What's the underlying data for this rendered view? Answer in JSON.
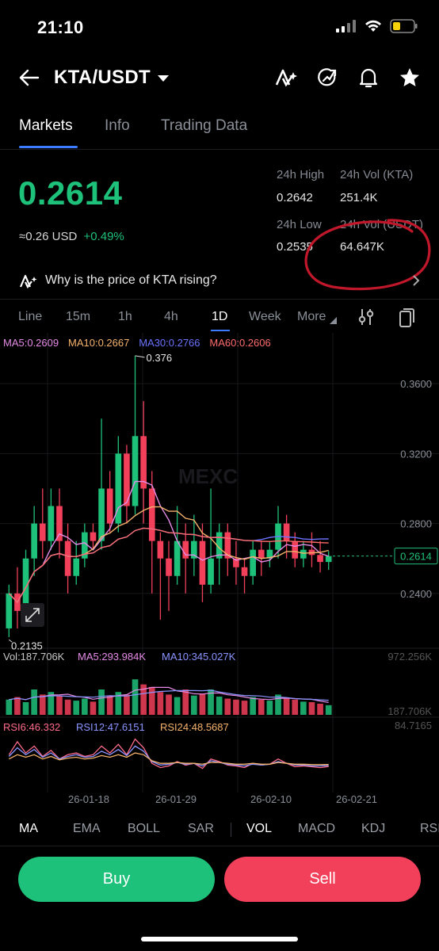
{
  "status": {
    "time": "21:10"
  },
  "header": {
    "pair": "KTA/USDT"
  },
  "tabs": [
    {
      "label": "Markets"
    },
    {
      "label": "Info"
    },
    {
      "label": "Trading Data"
    }
  ],
  "ticker": {
    "price": "0.2614",
    "fiat": "≈0.26",
    "fiat_unit": "USD",
    "change": "+0.49%",
    "high_label": "24h High",
    "high": "0.2642",
    "low_label": "24h Low",
    "low": "0.2535",
    "vol_kta_label": "24h Vol (KTA)",
    "vol_kta": "251.4K",
    "vol_usdt_label": "24h Vol (USDT)",
    "vol_usdt": "64.647K"
  },
  "why": {
    "text": "Why is the price of KTA rising?"
  },
  "intervals": [
    "Line",
    "15m",
    "1h",
    "4h",
    "1D",
    "Week",
    "More"
  ],
  "indicators": [
    "MA",
    "EMA",
    "BOLL",
    "SAR",
    "VOL",
    "MACD",
    "KDJ",
    "RSI"
  ],
  "actions": {
    "buy": "Buy",
    "sell": "Sell"
  },
  "chart_data": {
    "type": "candlestick",
    "ma_legend": [
      {
        "label": "MA5:0.2609",
        "color": "#e58be6"
      },
      {
        "label": "MA10:0.2667",
        "color": "#f5b26b"
      },
      {
        "label": "MA30:0.2766",
        "color": "#6b73ff"
      },
      {
        "label": "MA60:0.2606",
        "color": "#ff6b6b"
      }
    ],
    "y_ticks": [
      "0.3600",
      "0.3200",
      "0.2800",
      "0.2400"
    ],
    "ylim": [
      0.21,
      0.38
    ],
    "max_label": "0.376",
    "min_label": "0.2135",
    "last_price": "0.2614",
    "x_ticks": [
      "26-01-18",
      "26-01-29",
      "26-02-10",
      "26-02-21"
    ],
    "candles": [
      [
        0.22,
        0.24,
        0.215,
        0.245
      ],
      [
        0.24,
        0.23,
        0.22,
        0.255
      ],
      [
        0.23,
        0.26,
        0.225,
        0.265
      ],
      [
        0.26,
        0.28,
        0.25,
        0.29
      ],
      [
        0.28,
        0.27,
        0.26,
        0.3
      ],
      [
        0.27,
        0.29,
        0.265,
        0.3
      ],
      [
        0.29,
        0.27,
        0.26,
        0.3
      ],
      [
        0.27,
        0.25,
        0.24,
        0.28
      ],
      [
        0.25,
        0.26,
        0.245,
        0.27
      ],
      [
        0.26,
        0.275,
        0.255,
        0.28
      ],
      [
        0.275,
        0.27,
        0.265,
        0.28
      ],
      [
        0.27,
        0.3,
        0.265,
        0.34
      ],
      [
        0.3,
        0.28,
        0.275,
        0.31
      ],
      [
        0.28,
        0.32,
        0.275,
        0.33
      ],
      [
        0.32,
        0.29,
        0.28,
        0.325
      ],
      [
        0.29,
        0.33,
        0.285,
        0.376
      ],
      [
        0.33,
        0.3,
        0.28,
        0.35
      ],
      [
        0.3,
        0.27,
        0.24,
        0.31
      ],
      [
        0.27,
        0.26,
        0.225,
        0.275
      ],
      [
        0.26,
        0.25,
        0.23,
        0.27
      ],
      [
        0.25,
        0.27,
        0.245,
        0.29
      ],
      [
        0.27,
        0.26,
        0.24,
        0.28
      ],
      [
        0.26,
        0.27,
        0.25,
        0.285
      ],
      [
        0.27,
        0.245,
        0.235,
        0.28
      ],
      [
        0.245,
        0.26,
        0.24,
        0.3
      ],
      [
        0.26,
        0.275,
        0.245,
        0.28
      ],
      [
        0.275,
        0.26,
        0.25,
        0.28
      ],
      [
        0.26,
        0.255,
        0.245,
        0.27
      ],
      [
        0.255,
        0.25,
        0.24,
        0.26
      ],
      [
        0.25,
        0.265,
        0.245,
        0.27
      ],
      [
        0.265,
        0.26,
        0.25,
        0.27
      ],
      [
        0.26,
        0.265,
        0.255,
        0.27
      ],
      [
        0.265,
        0.28,
        0.26,
        0.29
      ],
      [
        0.28,
        0.27,
        0.26,
        0.285
      ],
      [
        0.27,
        0.26,
        0.255,
        0.275
      ],
      [
        0.26,
        0.265,
        0.255,
        0.27
      ],
      [
        0.265,
        0.262,
        0.255,
        0.275
      ],
      [
        0.262,
        0.258,
        0.252,
        0.27
      ],
      [
        0.258,
        0.2614,
        0.2535,
        0.2642
      ]
    ],
    "volume": {
      "label": "Vol:187.706K",
      "ma5": "MA5:293.984K",
      "ma10": "MA10:345.027K",
      "max": "972.256K",
      "last": "187.706K",
      "bars": [
        0.3,
        0.35,
        0.25,
        0.5,
        0.4,
        0.45,
        0.38,
        0.3,
        0.28,
        0.32,
        0.26,
        0.5,
        0.38,
        0.45,
        0.4,
        0.7,
        0.6,
        0.55,
        0.45,
        0.4,
        0.35,
        0.5,
        0.38,
        0.42,
        0.5,
        0.36,
        0.32,
        0.3,
        0.28,
        0.35,
        0.3,
        0.28,
        0.4,
        0.32,
        0.3,
        0.26,
        0.25,
        0.22,
        0.19
      ]
    },
    "rsi": {
      "rsi6": "RSI6:46.332",
      "rsi12": "RSI12:47.6151",
      "rsi24": "RSI24:48.5687",
      "max": "84.7165",
      "rsi6_values": [
        60,
        75,
        62,
        70,
        58,
        65,
        55,
        60,
        62,
        58,
        60,
        70,
        62,
        72,
        60,
        78,
        68,
        50,
        45,
        47,
        52,
        48,
        50,
        44,
        55,
        52,
        48,
        47,
        45,
        50,
        48,
        49,
        55,
        50,
        46,
        47,
        46,
        45,
        46.3
      ],
      "rsi12_values": [
        58,
        68,
        60,
        66,
        57,
        62,
        55,
        58,
        60,
        57,
        58,
        64,
        60,
        66,
        59,
        70,
        64,
        52,
        48,
        49,
        51,
        49,
        50,
        47,
        53,
        51,
        49,
        48,
        47,
        49,
        48,
        49,
        52,
        50,
        48,
        48,
        47,
        47,
        47.6
      ],
      "rsi24_values": [
        55,
        60,
        57,
        60,
        55,
        58,
        54,
        56,
        57,
        55,
        56,
        59,
        57,
        60,
        57,
        62,
        60,
        53,
        50,
        50,
        51,
        50,
        50,
        49,
        51,
        51,
        50,
        49,
        49,
        50,
        49,
        49,
        51,
        50,
        49,
        49,
        48.5,
        48.5,
        48.6
      ]
    }
  }
}
